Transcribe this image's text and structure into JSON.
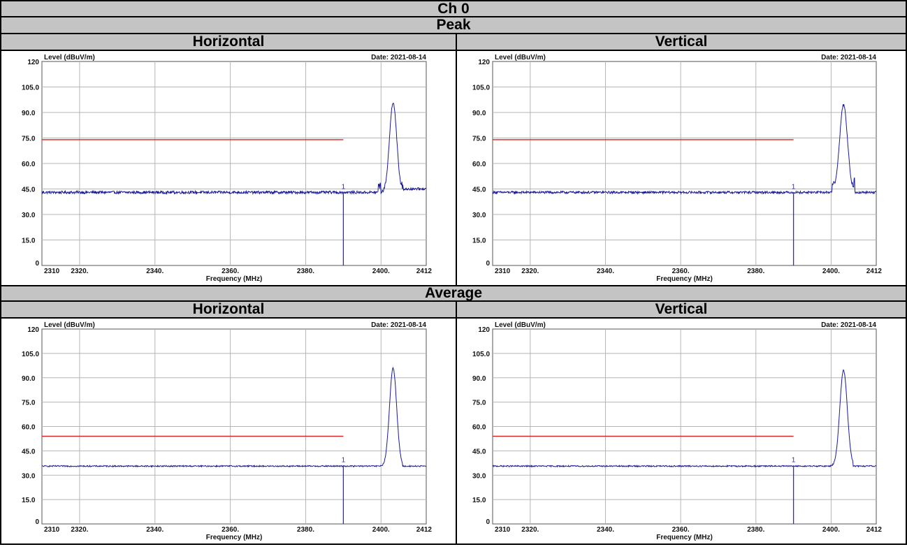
{
  "table": {
    "channel_title": "Ch 0",
    "peak_title": "Peak",
    "average_title": "Average",
    "horizontal_label": "Horizontal",
    "vertical_label": "Vertical"
  },
  "colors": {
    "trace": "#1a1a9a",
    "limit": "#d92020",
    "marker": "#2a2ad0",
    "grid": "#b5b5b5",
    "header_bg": "#c4c4c4"
  },
  "chart_data": [
    {
      "id": "peak-horizontal",
      "type": "line",
      "ylabel": "Level (dBuV/m)",
      "xlabel": "Frequency (MHz)",
      "date": "Date: 2021-08-14",
      "xlim": [
        2310,
        2412
      ],
      "ylim": [
        0,
        120
      ],
      "x_ticks": [
        2310,
        2320,
        2340,
        2360,
        2380,
        2400,
        2412
      ],
      "x_tick_labels": [
        "2310",
        "2320.",
        "2340.",
        "2360.",
        "2380.",
        "2400.",
        "2412"
      ],
      "y_ticks": [
        0,
        15,
        30,
        45,
        60,
        75,
        90,
        105,
        120
      ],
      "y_tick_labels": [
        "0",
        "15.0",
        "30.0",
        "45.0",
        "60.0",
        "75.0",
        "90.0",
        "105.0",
        "120"
      ],
      "limit_line": {
        "value": 74,
        "x_range": [
          2310,
          2390
        ]
      },
      "marker": {
        "x": 2390,
        "y": 43,
        "label": "1"
      },
      "series": [
        {
          "noise_floor": 43,
          "noise_amp": 0.8,
          "peak_x": 2403.2,
          "peak_y": 96,
          "peak_width": 0.95,
          "spur_x": [
            2399.6,
            2405.5
          ],
          "spur_y": 50,
          "end_y": 45
        }
      ]
    },
    {
      "id": "peak-vertical",
      "type": "line",
      "ylabel": "Level (dBuV/m)",
      "xlabel": "Frequency (MHz)",
      "date": "Date: 2021-08-14",
      "xlim": [
        2310,
        2412
      ],
      "ylim": [
        0,
        120
      ],
      "x_ticks": [
        2310,
        2320,
        2340,
        2360,
        2380,
        2400,
        2412
      ],
      "x_tick_labels": [
        "2310",
        "2320.",
        "2340.",
        "2360.",
        "2380.",
        "2400.",
        "2412"
      ],
      "y_ticks": [
        0,
        15,
        30,
        45,
        60,
        75,
        90,
        105,
        120
      ],
      "y_tick_labels": [
        "0",
        "15.0",
        "30.0",
        "45.0",
        "60.0",
        "75.0",
        "90.0",
        "105.0",
        "120"
      ],
      "limit_line": {
        "value": 74,
        "x_range": [
          2310,
          2390
        ]
      },
      "marker": {
        "x": 2390,
        "y": 43,
        "label": "1"
      },
      "series": [
        {
          "noise_floor": 43,
          "noise_amp": 0.7,
          "peak_x": 2403.3,
          "peak_y": 94.5,
          "peak_width": 1.05,
          "spur_x": [
            2400.6,
            2405.9
          ],
          "spur_y": 52,
          "end_y": 43
        }
      ]
    },
    {
      "id": "average-horizontal",
      "type": "line",
      "ylabel": "Level (dBuV/m)",
      "xlabel": "Frequency (MHz)",
      "date": "Date: 2021-08-14",
      "xlim": [
        2310,
        2412
      ],
      "ylim": [
        0,
        120
      ],
      "x_ticks": [
        2310,
        2320,
        2340,
        2360,
        2380,
        2400,
        2412
      ],
      "x_tick_labels": [
        "2310",
        "2320.",
        "2340.",
        "2360.",
        "2380.",
        "2400.",
        "2412"
      ],
      "y_ticks": [
        0,
        15,
        30,
        45,
        60,
        75,
        90,
        105,
        120
      ],
      "y_tick_labels": [
        "0",
        "15.0",
        "30.0",
        "45.0",
        "60.0",
        "75.0",
        "90.0",
        "105.0",
        "120"
      ],
      "limit_line": {
        "value": 54,
        "x_range": [
          2310,
          2390
        ]
      },
      "marker": {
        "x": 2390,
        "y": 36,
        "label": "1"
      },
      "series": [
        {
          "noise_floor": 35.6,
          "noise_amp": 0.4,
          "peak_x": 2403.2,
          "peak_y": 96,
          "peak_width": 0.95,
          "spur_x": [],
          "spur_y": 0,
          "end_y": 35.6
        }
      ]
    },
    {
      "id": "average-vertical",
      "type": "line",
      "ylabel": "Level (dBuV/m)",
      "xlabel": "Frequency (MHz)",
      "date": "Date: 2021-08-14",
      "xlim": [
        2310,
        2412
      ],
      "ylim": [
        0,
        120
      ],
      "x_ticks": [
        2310,
        2320,
        2340,
        2360,
        2380,
        2400,
        2412
      ],
      "x_tick_labels": [
        "2310",
        "2320.",
        "2340.",
        "2360.",
        "2380.",
        "2400.",
        "2412"
      ],
      "y_ticks": [
        0,
        15,
        30,
        45,
        60,
        75,
        90,
        105,
        120
      ],
      "y_tick_labels": [
        "0",
        "15.0",
        "30.0",
        "45.0",
        "60.0",
        "75.0",
        "90.0",
        "105.0",
        "120"
      ],
      "limit_line": {
        "value": 54,
        "x_range": [
          2310,
          2390
        ]
      },
      "marker": {
        "x": 2390,
        "y": 36,
        "label": "1"
      },
      "series": [
        {
          "noise_floor": 35.6,
          "noise_amp": 0.4,
          "peak_x": 2403.3,
          "peak_y": 94.5,
          "peak_width": 1.0,
          "spur_x": [],
          "spur_y": 0,
          "end_y": 35.6
        }
      ]
    }
  ]
}
